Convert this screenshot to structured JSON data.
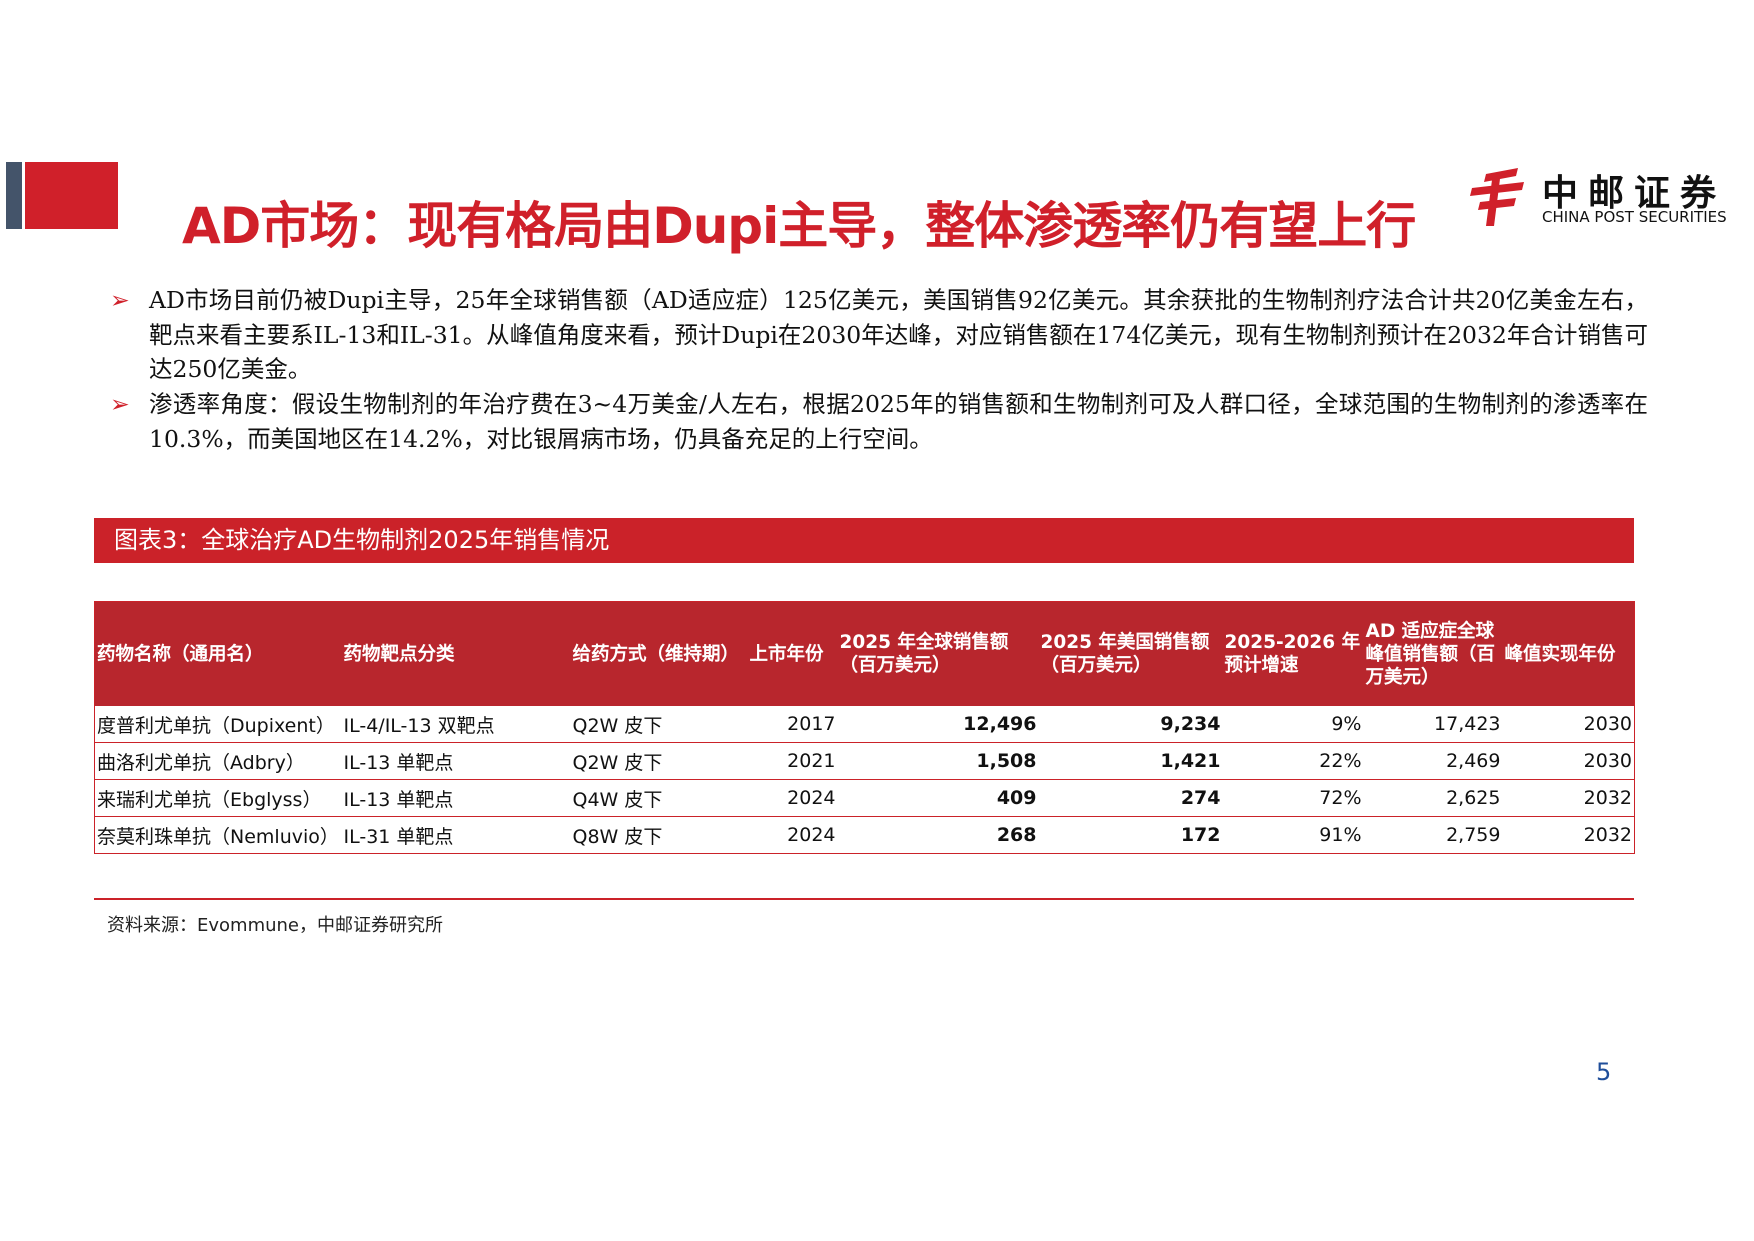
{
  "header": {
    "title": "AD市场：现有格局由Dupi主导，整体渗透率仍有望上行",
    "logo": {
      "name": "中邮证券",
      "subtitle": "CHINA POST SECURITIES"
    }
  },
  "bullets": [
    "AD市场目前仍被Dupi主导，25年全球销售额（AD适应症）125亿美元，美国销售92亿美元。其余获批的生物制剂疗法合计共20亿美金左右，靶点来看主要系IL-13和IL-31。从峰值角度来看，预计Dupi在2030年达峰，对应销售额在174亿美元，现有生物制剂预计在2032年合计销售可达250亿美金。",
    "渗透率角度：假设生物制剂的年治疗费在3~4万美金/人左右，根据2025年的销售额和生物制剂可及人群口径，全球范围的生物制剂的渗透率在10.3%，而美国地区在14.2%，对比银屑病市场，仍具备充足的上行空间。"
  ],
  "figure": {
    "title": "图表3：全球治疗AD生物制剂2025年销售情况",
    "source": "资料来源：Evommune，中邮证券研究所"
  },
  "table": {
    "columns": [
      "药物名称（通用名）",
      "药物靶点分类",
      "给药方式（维持期）",
      "上市年份",
      "2025 年全球销售额（百万美元）",
      "2025 年美国销售额（百万美元）",
      "2025-2026 年预计增速",
      "AD 适应症全球峰值销售额（百万美元）",
      "峰值实现年份"
    ],
    "rows": [
      [
        "度普利尤单抗（Dupixent）",
        "IL-4/IL-13 双靶点",
        "Q2W 皮下",
        "2017",
        "12,496",
        "9,234",
        "9%",
        "17,423",
        "2030"
      ],
      [
        "曲洛利尤单抗（Adbry）",
        "IL-13 单靶点",
        "Q2W 皮下",
        "2021",
        "1,508",
        "1,421",
        "22%",
        "2,469",
        "2030"
      ],
      [
        "来瑞利尤单抗（Ebglyss）",
        "IL-13 单靶点",
        "Q4W 皮下",
        "2024",
        "409",
        "274",
        "72%",
        "2,625",
        "2032"
      ],
      [
        "奈莫利珠单抗（Nemluvio）",
        "IL-31 单靶点",
        "Q8W 皮下",
        "2024",
        "268",
        "172",
        "91%",
        "2,759",
        "2032"
      ]
    ]
  },
  "page_number": "5"
}
